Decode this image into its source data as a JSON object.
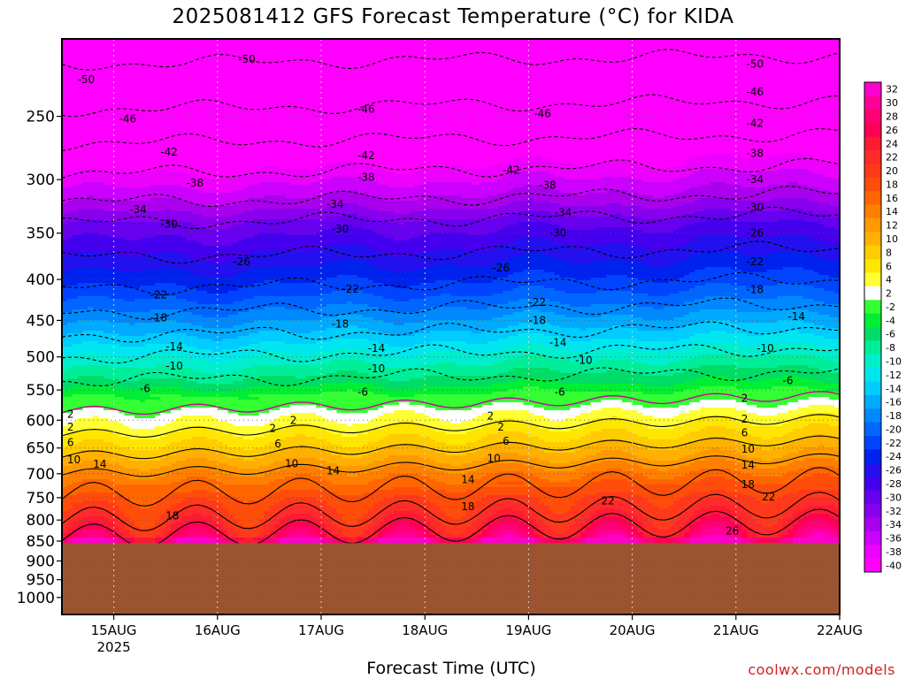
{
  "header": {
    "title": "2025081412 GFS Forecast Temperature (°C) for KIDA"
  },
  "footer": {
    "x_axis_title": "Forecast Time (UTC)",
    "watermark": "coolwx.com/models"
  },
  "chart_data": {
    "type": "heatmap",
    "title": "2025081412 GFS Forecast Temperature (°C) for KIDA",
    "xlabel": "Forecast Time (UTC)",
    "ylabel": "",
    "y_scale": "log",
    "y_inverted": true,
    "y_ticks": [
      250,
      300,
      350,
      400,
      450,
      500,
      550,
      600,
      650,
      700,
      750,
      800,
      850,
      900,
      950,
      1000
    ],
    "ylim": [
      1050,
      200
    ],
    "x_ticks": [
      {
        "label": "15AUG",
        "sublabel": "2025"
      },
      {
        "label": "16AUG",
        "sublabel": ""
      },
      {
        "label": "17AUG",
        "sublabel": ""
      },
      {
        "label": "18AUG",
        "sublabel": ""
      },
      {
        "label": "19AUG",
        "sublabel": ""
      },
      {
        "label": "20AUG",
        "sublabel": ""
      },
      {
        "label": "21AUG",
        "sublabel": ""
      },
      {
        "label": "22AUG",
        "sublabel": ""
      }
    ],
    "xlim_days": [
      "2025-08-14T12:00Z",
      "2025-08-22T00:00Z"
    ],
    "ground_pressure_hpa": 855,
    "ground_color": "#9c5430",
    "grid": true,
    "colorbar": {
      "levels": [
        32,
        30,
        28,
        26,
        24,
        22,
        20,
        18,
        16,
        14,
        12,
        10,
        8,
        6,
        4,
        2,
        -2,
        -4,
        -6,
        -8,
        -10,
        -12,
        -14,
        -16,
        -18,
        -20,
        -22,
        -24,
        -26,
        -28,
        -30,
        -32,
        -34,
        -36,
        -38,
        -40
      ],
      "colors": [
        "#ff00cc",
        "#ff0099",
        "#ff0077",
        "#ff0055",
        "#ff1a33",
        "#ff2a2a",
        "#ff3a1a",
        "#ff4d0a",
        "#ff6600",
        "#ff8000",
        "#ff9900",
        "#ffb000",
        "#ffcc00",
        "#ffe600",
        "#ffff33",
        "#ffffff",
        "#33ff33",
        "#00ee33",
        "#00dd66",
        "#00ee99",
        "#00eecc",
        "#00e6ee",
        "#00ccff",
        "#00aaff",
        "#0088ff",
        "#0066ff",
        "#0044ff",
        "#0022ee",
        "#2211ee",
        "#4400ee",
        "#6600ee",
        "#8800ee",
        "#aa00ee",
        "#cc00ff",
        "#ee00ff",
        "#ff00ff"
      ]
    },
    "contour_bands": [
      {
        "pressure": 215,
        "temp": -50
      },
      {
        "pressure": 245,
        "temp": -46
      },
      {
        "pressure": 270,
        "temp": -42
      },
      {
        "pressure": 295,
        "temp": -38
      },
      {
        "pressure": 320,
        "temp": -34
      },
      {
        "pressure": 340,
        "temp": -30
      },
      {
        "pressure": 375,
        "temp": -26
      },
      {
        "pressure": 410,
        "temp": -22
      },
      {
        "pressure": 440,
        "temp": -18
      },
      {
        "pressure": 470,
        "temp": -14
      },
      {
        "pressure": 500,
        "temp": -10
      },
      {
        "pressure": 535,
        "temp": -6
      },
      {
        "pressure": 585,
        "temp": 2
      },
      {
        "pressure": 625,
        "temp": 6
      },
      {
        "pressure": 665,
        "temp": 10
      },
      {
        "pressure": 700,
        "temp": 14
      },
      {
        "pressure": 745,
        "temp": 18
      },
      {
        "pressure": 800,
        "temp": 22
      },
      {
        "pressure": 840,
        "temp": 26
      }
    ],
    "contour_labels": [
      {
        "text": "-50",
        "day": 0.15,
        "p": 225
      },
      {
        "text": "-50",
        "day": 1.7,
        "p": 212
      },
      {
        "text": "-50",
        "day": 6.6,
        "p": 215
      },
      {
        "text": "-46",
        "day": 0.55,
        "p": 252
      },
      {
        "text": "-46",
        "day": 2.85,
        "p": 245
      },
      {
        "text": "-46",
        "day": 4.55,
        "p": 248
      },
      {
        "text": "-46",
        "day": 6.6,
        "p": 233
      },
      {
        "text": "-42",
        "day": 0.95,
        "p": 277
      },
      {
        "text": "-42",
        "day": 2.85,
        "p": 280
      },
      {
        "text": "-42",
        "day": 4.25,
        "p": 292
      },
      {
        "text": "-42",
        "day": 6.6,
        "p": 255
      },
      {
        "text": "-38",
        "day": 1.2,
        "p": 303
      },
      {
        "text": "-38",
        "day": 2.85,
        "p": 298
      },
      {
        "text": "-38",
        "day": 4.6,
        "p": 305
      },
      {
        "text": "-38",
        "day": 6.6,
        "p": 278
      },
      {
        "text": "-34",
        "day": 0.65,
        "p": 327
      },
      {
        "text": "-34",
        "day": 2.55,
        "p": 322
      },
      {
        "text": "-34",
        "day": 4.75,
        "p": 330
      },
      {
        "text": "-34",
        "day": 6.6,
        "p": 300
      },
      {
        "text": "-30",
        "day": 0.95,
        "p": 341
      },
      {
        "text": "-30",
        "day": 2.6,
        "p": 346
      },
      {
        "text": "-30",
        "day": 4.7,
        "p": 350
      },
      {
        "text": "-30",
        "day": 6.6,
        "p": 325
      },
      {
        "text": "-26",
        "day": 1.65,
        "p": 380
      },
      {
        "text": "-26",
        "day": 4.15,
        "p": 387
      },
      {
        "text": "-26",
        "day": 6.6,
        "p": 350
      },
      {
        "text": "-22",
        "day": 0.85,
        "p": 418
      },
      {
        "text": "-22",
        "day": 2.7,
        "p": 411
      },
      {
        "text": "-22",
        "day": 4.5,
        "p": 427
      },
      {
        "text": "-22",
        "day": 6.6,
        "p": 380
      },
      {
        "text": "-18",
        "day": 0.85,
        "p": 447
      },
      {
        "text": "-18",
        "day": 2.6,
        "p": 455
      },
      {
        "text": "-18",
        "day": 4.5,
        "p": 450
      },
      {
        "text": "-18",
        "day": 6.6,
        "p": 412
      },
      {
        "text": "-14",
        "day": 1.0,
        "p": 485
      },
      {
        "text": "-14",
        "day": 2.95,
        "p": 488
      },
      {
        "text": "-14",
        "day": 4.7,
        "p": 480
      },
      {
        "text": "-14",
        "day": 7.0,
        "p": 445
      },
      {
        "text": "-10",
        "day": 1.0,
        "p": 513
      },
      {
        "text": "-10",
        "day": 2.95,
        "p": 517
      },
      {
        "text": "-10",
        "day": 4.95,
        "p": 505
      },
      {
        "text": "-10",
        "day": 6.7,
        "p": 488
      },
      {
        "text": "-6",
        "day": 0.75,
        "p": 548
      },
      {
        "text": "-6",
        "day": 2.85,
        "p": 553
      },
      {
        "text": "-6",
        "day": 4.75,
        "p": 553
      },
      {
        "text": "-6",
        "day": 6.95,
        "p": 535
      },
      {
        "text": "2",
        "day": 0.05,
        "p": 590
      },
      {
        "text": "2",
        "day": 2.2,
        "p": 600
      },
      {
        "text": "2",
        "day": 4.1,
        "p": 593
      },
      {
        "text": "2",
        "day": 6.55,
        "p": 563
      },
      {
        "text": "2",
        "day": 0.05,
        "p": 612
      },
      {
        "text": "2",
        "day": 2.0,
        "p": 614
      },
      {
        "text": "2",
        "day": 4.2,
        "p": 612
      },
      {
        "text": "2",
        "day": 6.55,
        "p": 598
      },
      {
        "text": "6",
        "day": 0.05,
        "p": 640
      },
      {
        "text": "6",
        "day": 2.05,
        "p": 642
      },
      {
        "text": "6",
        "day": 4.25,
        "p": 637
      },
      {
        "text": "6",
        "day": 6.55,
        "p": 622
      },
      {
        "text": "10",
        "day": 0.05,
        "p": 672
      },
      {
        "text": "10",
        "day": 2.15,
        "p": 680
      },
      {
        "text": "10",
        "day": 4.1,
        "p": 670
      },
      {
        "text": "10",
        "day": 6.55,
        "p": 652
      },
      {
        "text": "14",
        "day": 0.3,
        "p": 681
      },
      {
        "text": "14",
        "day": 2.55,
        "p": 694
      },
      {
        "text": "14",
        "day": 3.85,
        "p": 712
      },
      {
        "text": "14",
        "day": 6.55,
        "p": 683
      },
      {
        "text": "18",
        "day": 1.0,
        "p": 790
      },
      {
        "text": "18",
        "day": 3.85,
        "p": 770
      },
      {
        "text": "18",
        "day": 6.55,
        "p": 722
      },
      {
        "text": "22",
        "day": 5.2,
        "p": 757
      },
      {
        "text": "22",
        "day": 6.75,
        "p": 748
      },
      {
        "text": "26",
        "day": 6.4,
        "p": 825
      }
    ]
  }
}
